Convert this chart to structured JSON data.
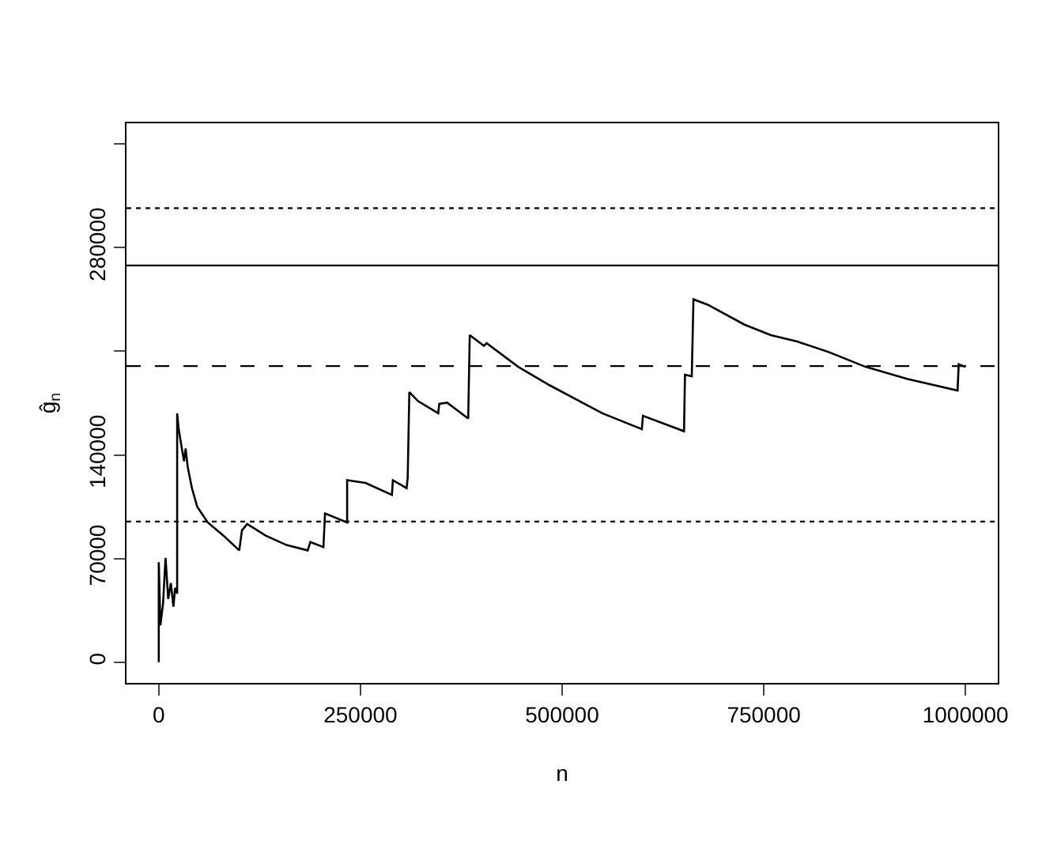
{
  "chart_data": {
    "type": "line",
    "xlabel": "n",
    "ylabel": "ĝ$_{n}$",
    "xlim": [
      -40000,
      1040000
    ],
    "xticks": [
      0,
      250000,
      500000,
      750000,
      1000000
    ],
    "ylim": [
      -14000,
      364000
    ],
    "yticks": [
      0,
      70000,
      140000,
      {
        "value": 210000,
        "label": null
      },
      280000,
      {
        "value": 350000,
        "label": null
      }
    ],
    "grid": false,
    "ref_lines": [
      {
        "axis": "y",
        "value": 306700,
        "label": null,
        "color": "#000000",
        "line_style": "dotted"
      },
      {
        "axis": "y",
        "value": 268000,
        "label": null,
        "color": "#000000",
        "line_style": "solid"
      },
      {
        "axis": "y",
        "value": 200000,
        "label": null,
        "color": "#000000",
        "line_style": "dashed"
      },
      {
        "axis": "y",
        "value": 95000,
        "label": null,
        "color": "#000000",
        "line_style": "dotted"
      }
    ],
    "series": [
      {
        "color": "#000000",
        "x": [
          0,
          0,
          2000,
          5300,
          8400,
          11700,
          15000,
          18200,
          20200,
          22800,
          22800,
          24800,
          28000,
          31300,
          33300,
          35900,
          41100,
          47600,
          60700,
          80200,
          99800,
          103100,
          109600,
          132500,
          158500,
          184600,
          187900,
          204100,
          206100,
          233500,
          233500,
          256400,
          289000,
          290200,
          307200,
          308600,
          310600,
          321500,
          346400,
          347700,
          357500,
          383600,
          385500,
          403100,
          406500,
          445600,
          484700,
          549900,
          598800,
          600200,
          651100,
          652300,
          660700,
          662800,
          680400,
          726100,
          758700,
          791300,
          830400,
          876100,
          928200,
          990200,
          991600,
          1000000
        ],
        "values": [
          0,
          67600,
          24900,
          39500,
          70500,
          42700,
          53400,
          37400,
          50200,
          46300,
          168100,
          157100,
          146400,
          135700,
          144300,
          131800,
          117600,
          105100,
          94400,
          85500,
          75500,
          89000,
          93300,
          85500,
          79100,
          75500,
          81200,
          77700,
          100500,
          94400,
          122900,
          121100,
          113000,
          122900,
          117600,
          124700,
          182400,
          176300,
          168100,
          174500,
          175300,
          164600,
          220900,
          213700,
          215500,
          199500,
          187000,
          168100,
          157400,
          166400,
          156000,
          194200,
          193100,
          245100,
          241500,
          228000,
          220900,
          216600,
          209500,
          199500,
          191300,
          183500,
          201200,
          199500
        ]
      }
    ]
  }
}
